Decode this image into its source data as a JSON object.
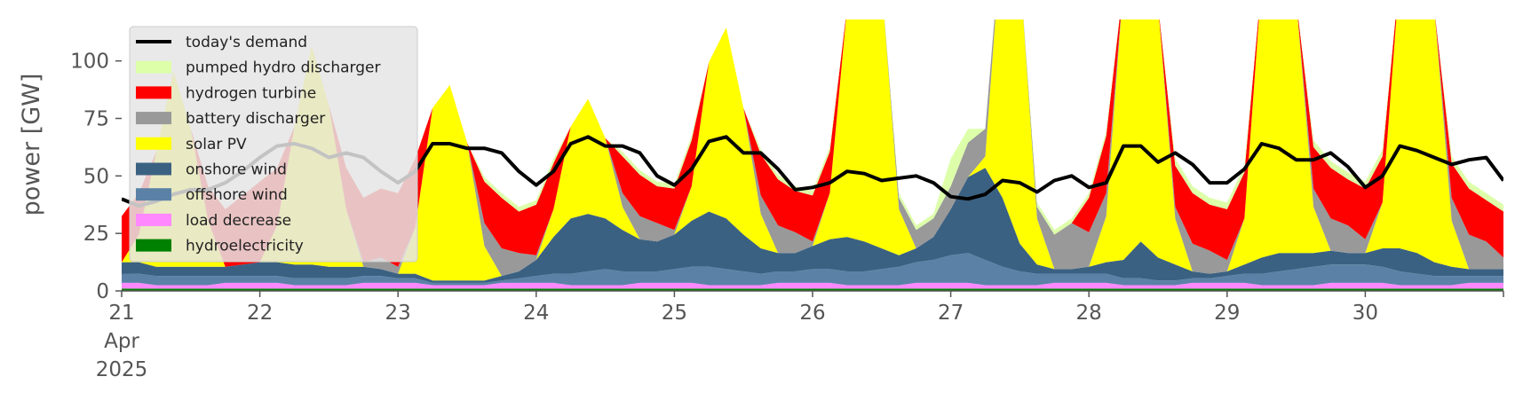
{
  "chart_data": {
    "type": "area",
    "title": "",
    "xlabel": "",
    "ylabel": "power [GW]",
    "xlim": [
      "2025-04-21",
      "2025-05-01"
    ],
    "ylim": [
      0,
      118
    ],
    "y_ticks": [
      0,
      25,
      50,
      75,
      100
    ],
    "x_ticks": [
      {
        "date": "2025-04-21",
        "lines": [
          "21",
          "Apr",
          "2025"
        ]
      },
      {
        "date": "2025-04-22",
        "lines": [
          "22"
        ]
      },
      {
        "date": "2025-04-23",
        "lines": [
          "23"
        ]
      },
      {
        "date": "2025-04-24",
        "lines": [
          "24"
        ]
      },
      {
        "date": "2025-04-25",
        "lines": [
          "25"
        ]
      },
      {
        "date": "2025-04-26",
        "lines": [
          "26"
        ]
      },
      {
        "date": "2025-04-27",
        "lines": [
          "27"
        ]
      },
      {
        "date": "2025-04-28",
        "lines": [
          "28"
        ]
      },
      {
        "date": "2025-04-29",
        "lines": [
          "29"
        ]
      },
      {
        "date": "2025-04-30",
        "lines": [
          "30"
        ]
      }
    ],
    "grid": false,
    "legend_position": "top-left",
    "x": [
      "2025-04-21 00:00",
      "2025-04-21 03:00",
      "2025-04-21 06:00",
      "2025-04-21 09:00",
      "2025-04-21 12:00",
      "2025-04-21 15:00",
      "2025-04-21 18:00",
      "2025-04-21 21:00",
      "2025-04-22 00:00",
      "2025-04-22 03:00",
      "2025-04-22 06:00",
      "2025-04-22 09:00",
      "2025-04-22 12:00",
      "2025-04-22 15:00",
      "2025-04-22 18:00",
      "2025-04-22 21:00",
      "2025-04-23 00:00",
      "2025-04-23 03:00",
      "2025-04-23 06:00",
      "2025-04-23 09:00",
      "2025-04-23 12:00",
      "2025-04-23 15:00",
      "2025-04-23 18:00",
      "2025-04-23 21:00",
      "2025-04-24 00:00",
      "2025-04-24 03:00",
      "2025-04-24 06:00",
      "2025-04-24 09:00",
      "2025-04-24 12:00",
      "2025-04-24 15:00",
      "2025-04-24 18:00",
      "2025-04-24 21:00",
      "2025-04-25 00:00",
      "2025-04-25 03:00",
      "2025-04-25 06:00",
      "2025-04-25 09:00",
      "2025-04-25 12:00",
      "2025-04-25 15:00",
      "2025-04-25 18:00",
      "2025-04-25 21:00",
      "2025-04-26 00:00",
      "2025-04-26 03:00",
      "2025-04-26 06:00",
      "2025-04-26 09:00",
      "2025-04-26 12:00",
      "2025-04-26 15:00",
      "2025-04-26 18:00",
      "2025-04-26 21:00",
      "2025-04-27 00:00",
      "2025-04-27 03:00",
      "2025-04-27 06:00",
      "2025-04-27 09:00",
      "2025-04-27 12:00",
      "2025-04-27 15:00",
      "2025-04-27 18:00",
      "2025-04-27 21:00",
      "2025-04-28 00:00",
      "2025-04-28 03:00",
      "2025-04-28 06:00",
      "2025-04-28 09:00",
      "2025-04-28 12:00",
      "2025-04-28 15:00",
      "2025-04-28 18:00",
      "2025-04-28 21:00",
      "2025-04-29 00:00",
      "2025-04-29 03:00",
      "2025-04-29 06:00",
      "2025-04-29 09:00",
      "2025-04-29 12:00",
      "2025-04-29 15:00",
      "2025-04-29 18:00",
      "2025-04-29 21:00",
      "2025-04-30 00:00",
      "2025-04-30 03:00",
      "2025-04-30 06:00",
      "2025-04-30 09:00",
      "2025-04-30 12:00",
      "2025-04-30 15:00",
      "2025-04-30 18:00",
      "2025-04-30 21:00",
      "2025-05-01 00:00"
    ],
    "series": [
      {
        "name": "hydroelectricity",
        "color": "#008000",
        "values": [
          1,
          1,
          1,
          1,
          1,
          1,
          1,
          1,
          1,
          1,
          1,
          1,
          1,
          1,
          1,
          1,
          1,
          1,
          1,
          1,
          1,
          1,
          1,
          1,
          1,
          1,
          1,
          1,
          1,
          1,
          1,
          1,
          1,
          1,
          1,
          1,
          1,
          1,
          1,
          1,
          1,
          1,
          1,
          1,
          1,
          1,
          1,
          1,
          1,
          1,
          1,
          1,
          1,
          1,
          1,
          1,
          1,
          1,
          1,
          1,
          1,
          1,
          1,
          1,
          1,
          1,
          1,
          1,
          1,
          1,
          1,
          1,
          1,
          1,
          1,
          1,
          1,
          1,
          1,
          1,
          1
        ]
      },
      {
        "name": "load decrease",
        "color": "#ff88ff",
        "values": [
          2.5,
          2.5,
          1.5,
          1.5,
          1.5,
          1.5,
          2.5,
          2.5,
          2.5,
          2.5,
          1.5,
          1.5,
          1.5,
          1.5,
          2.5,
          2.5,
          2.5,
          2.5,
          1.5,
          1.5,
          1.5,
          1.5,
          2.5,
          2.5,
          2.5,
          2.5,
          1.5,
          1.5,
          1.5,
          1.5,
          2.5,
          2.5,
          2.5,
          2.5,
          1.5,
          1.5,
          1.5,
          1.5,
          2.5,
          2.5,
          2.5,
          2.5,
          1.5,
          1.5,
          1.5,
          1.5,
          2.5,
          2.5,
          2.5,
          2.5,
          1.5,
          1.5,
          1.5,
          1.5,
          2.5,
          2.5,
          2.5,
          2.5,
          1.5,
          1.5,
          1.5,
          1.5,
          2.5,
          2.5,
          2.5,
          2.5,
          1.5,
          1.5,
          1.5,
          1.5,
          2.5,
          2.5,
          2.5,
          2.5,
          1.5,
          1.5,
          1.5,
          1.5,
          2.5,
          2.5,
          2.5
        ]
      },
      {
        "name": "offshore wind",
        "color": "#5b82a6",
        "values": [
          4,
          4,
          4,
          4,
          4,
          4,
          3,
          3,
          3,
          3,
          3,
          3,
          3,
          3,
          3,
          3,
          2,
          2,
          1,
          1,
          1,
          1,
          1,
          2,
          3,
          4,
          5,
          6,
          7,
          6,
          5,
          5,
          6,
          7,
          8,
          7,
          6,
          5,
          5,
          5,
          6,
          6,
          6,
          6,
          7,
          8,
          9,
          10,
          12,
          13,
          11,
          8,
          6,
          5,
          4,
          4,
          4,
          4,
          3,
          3,
          2,
          2,
          2,
          2,
          3,
          4,
          5,
          6,
          7,
          8,
          8,
          8,
          8,
          7,
          6,
          5,
          4,
          4,
          3,
          3,
          3
        ]
      },
      {
        "name": "onshore wind",
        "color": "#3b6182",
        "values": [
          5,
          5,
          4,
          4,
          4,
          4,
          4,
          5,
          6,
          6,
          6,
          6,
          5,
          5,
          4,
          3,
          2,
          2,
          1,
          1,
          1,
          1,
          2,
          3,
          7,
          16,
          24,
          25,
          22,
          18,
          14,
          13,
          15,
          20,
          24,
          22,
          16,
          11,
          8,
          8,
          10,
          13,
          15,
          13,
          9,
          5,
          6,
          10,
          20,
          33,
          40,
          30,
          12,
          4,
          2,
          2,
          3,
          5,
          8,
          16,
          10,
          7,
          3,
          2,
          2,
          4,
          7,
          8,
          7,
          6,
          6,
          5,
          5,
          8,
          10,
          9,
          6,
          4,
          3,
          3,
          3
        ]
      },
      {
        "name": "solar PV",
        "color": "#ffff00",
        "values": [
          0,
          12,
          50,
          85,
          60,
          20,
          0,
          0,
          0,
          16,
          60,
          95,
          70,
          25,
          0,
          0,
          0,
          20,
          75,
          85,
          60,
          15,
          0,
          0,
          0,
          12,
          40,
          50,
          35,
          10,
          0,
          0,
          0,
          15,
          65,
          83,
          55,
          15,
          0,
          0,
          0,
          20,
          100,
          120,
          115,
          20,
          0,
          0,
          0,
          0,
          5,
          120,
          120,
          20,
          0,
          0,
          0,
          20,
          120,
          120,
          110,
          20,
          0,
          0,
          0,
          20,
          120,
          120,
          110,
          20,
          0,
          0,
          0,
          20,
          120,
          120,
          110,
          20,
          0,
          0,
          0
        ]
      },
      {
        "name": "battery discharger",
        "color": "#999999",
        "values": [
          0,
          0,
          0,
          0,
          0,
          0,
          0,
          0,
          0,
          0,
          0,
          0,
          0,
          0,
          2,
          5,
          3,
          0,
          0,
          0,
          0,
          10,
          12,
          8,
          2,
          0,
          0,
          0,
          0,
          6,
          10,
          8,
          2,
          0,
          0,
          0,
          0,
          8,
          12,
          9,
          2,
          0,
          0,
          0,
          0,
          5,
          8,
          8,
          10,
          15,
          12,
          0,
          0,
          5,
          15,
          20,
          15,
          10,
          0,
          0,
          0,
          5,
          12,
          10,
          5,
          0,
          0,
          0,
          0,
          8,
          14,
          12,
          6,
          0,
          0,
          0,
          0,
          10,
          15,
          12,
          5
        ]
      },
      {
        "name": "hydrogen turbine",
        "color": "#ff0000",
        "values": [
          20,
          18,
          0,
          0,
          0,
          15,
          25,
          30,
          35,
          25,
          0,
          0,
          0,
          18,
          28,
          30,
          32,
          30,
          0,
          0,
          0,
          18,
          22,
          18,
          22,
          20,
          0,
          0,
          0,
          16,
          18,
          16,
          18,
          20,
          0,
          0,
          0,
          18,
          20,
          18,
          20,
          18,
          0,
          0,
          0,
          0,
          0,
          0,
          0,
          0,
          0,
          0,
          0,
          0,
          0,
          0,
          15,
          25,
          0,
          0,
          0,
          18,
          22,
          20,
          22,
          20,
          0,
          0,
          0,
          18,
          22,
          20,
          22,
          20,
          0,
          0,
          0,
          15,
          20,
          18,
          20
        ]
      },
      {
        "name": "pumped hydro discharger",
        "color": "#ddffaa",
        "values": [
          0,
          0,
          0,
          0,
          0,
          0,
          0,
          0,
          0,
          0,
          0,
          0,
          0,
          0,
          0,
          0,
          0,
          0,
          0,
          0,
          0,
          2,
          2,
          2,
          2,
          2,
          0,
          0,
          0,
          2,
          2,
          2,
          2,
          2,
          0,
          0,
          0,
          2,
          2,
          2,
          2,
          2,
          0,
          0,
          0,
          2,
          2,
          2,
          12,
          6,
          0,
          0,
          0,
          2,
          2,
          2,
          2,
          2,
          0,
          0,
          0,
          3,
          3,
          3,
          3,
          3,
          0,
          0,
          0,
          3,
          3,
          3,
          3,
          3,
          0,
          0,
          0,
          3,
          3,
          3,
          3
        ]
      }
    ],
    "demand": {
      "name": "today's demand",
      "color": "#000000",
      "values": [
        40,
        37,
        39,
        42,
        44,
        44,
        47,
        52,
        58,
        63,
        64,
        62,
        58,
        60,
        58,
        52,
        47,
        52,
        64,
        64,
        62,
        62,
        60,
        52,
        46,
        52,
        64,
        67,
        63,
        63,
        60,
        50,
        46,
        53,
        65,
        67,
        60,
        60,
        53,
        44,
        45,
        47,
        52,
        51,
        48,
        49,
        50,
        47,
        41,
        40,
        42,
        48,
        47,
        43,
        48,
        50,
        45,
        47,
        63,
        63,
        56,
        60,
        55,
        47,
        47,
        53,
        64,
        62,
        57,
        57,
        60,
        54,
        45,
        50,
        63,
        61,
        58,
        55,
        57,
        58,
        48
      ]
    }
  }
}
